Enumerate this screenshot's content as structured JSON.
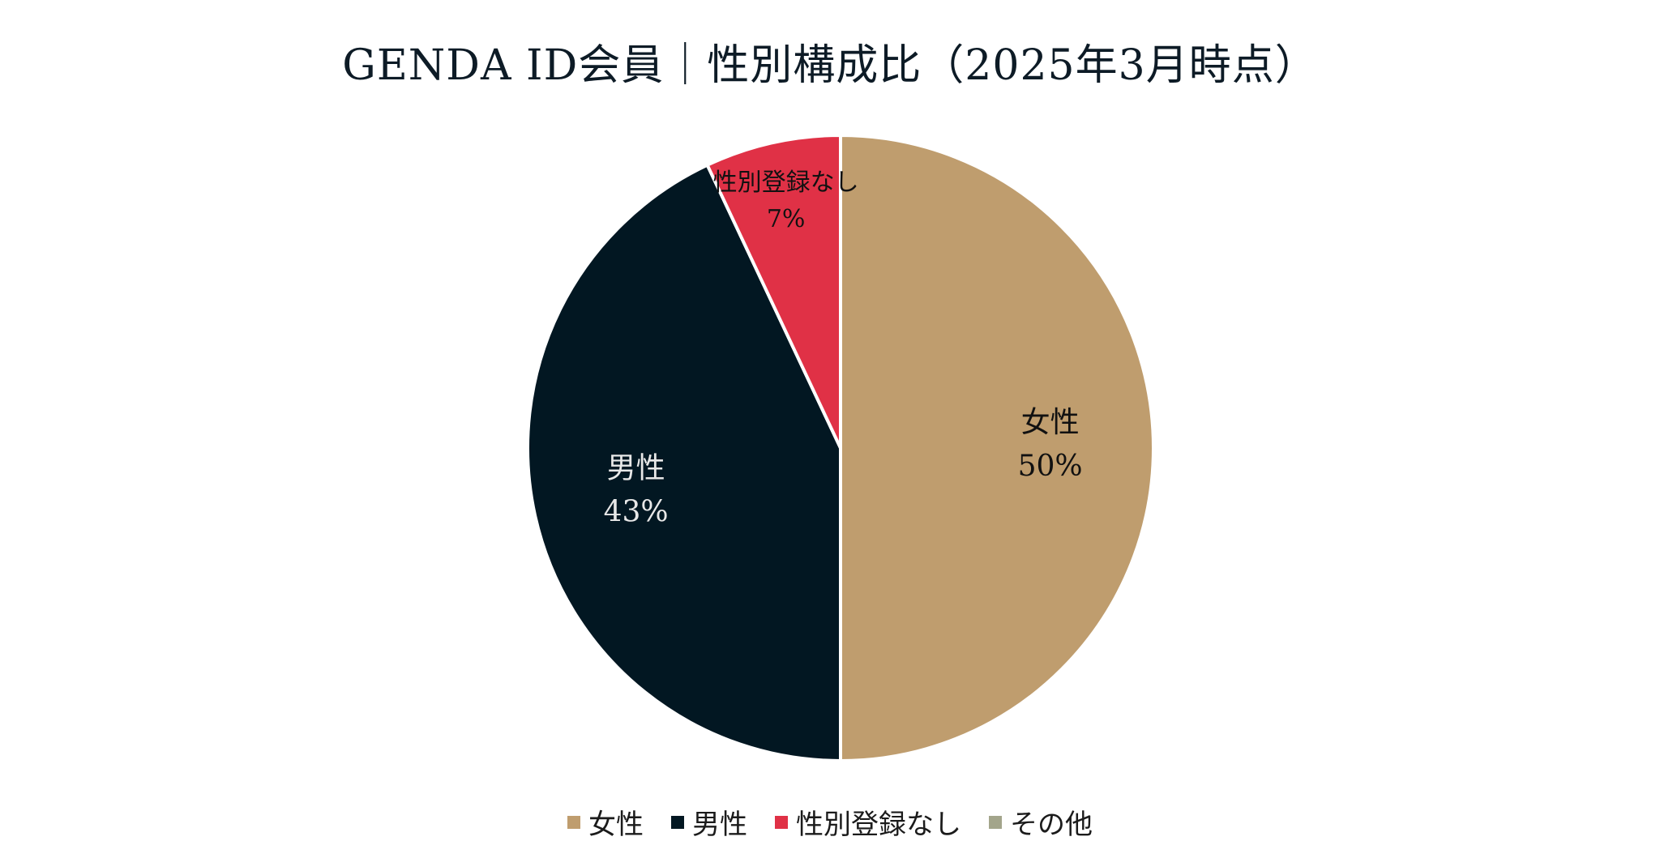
{
  "chart_data": {
    "type": "pie",
    "title": "GENDA ID会員｜性別構成比（2025年3月時点）",
    "slices": [
      {
        "name": "女性",
        "value": 50,
        "percent_label": "50%",
        "color": "#bf9d6e",
        "label_color": "#111111"
      },
      {
        "name": "男性",
        "value": 43,
        "percent_label": "43%",
        "color": "#021722",
        "label_color": "#e8e8e8"
      },
      {
        "name": "性別登録なし",
        "value": 7,
        "percent_label": "7%",
        "color": "#e03146",
        "label_color": "#111111"
      },
      {
        "name": "その他",
        "value": 0,
        "percent_label": "",
        "color": "#a3a58b",
        "label_color": "#111111"
      }
    ],
    "legend": {
      "placement": "bottom",
      "entries": [
        "女性",
        "男性",
        "性別登録なし",
        "その他"
      ]
    }
  }
}
